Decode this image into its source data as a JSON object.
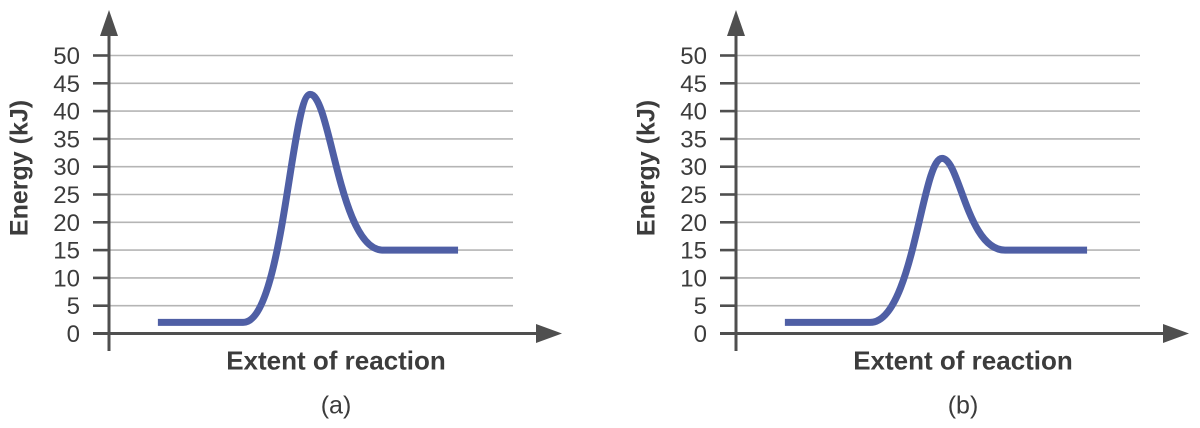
{
  "style": {
    "background": "#ffffff",
    "curve_color": "#4f5fa5",
    "axis_color": "#4f4f4f",
    "grid_color": "#b5b5b5",
    "text_color": "#3c3c3c",
    "curve_width": 7
  },
  "chart_data": [
    {
      "id": "a",
      "type": "line",
      "caption": "(a)",
      "xlabel": "Extent of reaction",
      "ylabel": "Energy (kJ)",
      "ylim": [
        0,
        50
      ],
      "ytick_interval": 5,
      "yticks": [
        0,
        5,
        10,
        15,
        20,
        25,
        30,
        35,
        40,
        45,
        50
      ],
      "grid": true,
      "legend": "none",
      "curve": {
        "start_kj": 2,
        "peak_kj": 43,
        "end_kj": 15,
        "points": [
          [
            0.121,
            2
          ],
          [
            0.332,
            2
          ],
          [
            0.498,
            43
          ],
          [
            0.678,
            15
          ],
          [
            0.864,
            15
          ]
        ]
      }
    },
    {
      "id": "b",
      "type": "line",
      "caption": "(b)",
      "xlabel": "Extent of reaction",
      "ylabel": "Energy (kJ)",
      "ylim": [
        0,
        50
      ],
      "ytick_interval": 5,
      "yticks": [
        0,
        5,
        10,
        15,
        20,
        25,
        30,
        35,
        40,
        45,
        50
      ],
      "grid": true,
      "legend": "none",
      "curve": {
        "start_kj": 2,
        "peak_kj": 31.5,
        "end_kj": 15,
        "points": [
          [
            0.121,
            2
          ],
          [
            0.332,
            2
          ],
          [
            0.51,
            31.5
          ],
          [
            0.666,
            15
          ],
          [
            0.869,
            15
          ]
        ]
      }
    }
  ]
}
